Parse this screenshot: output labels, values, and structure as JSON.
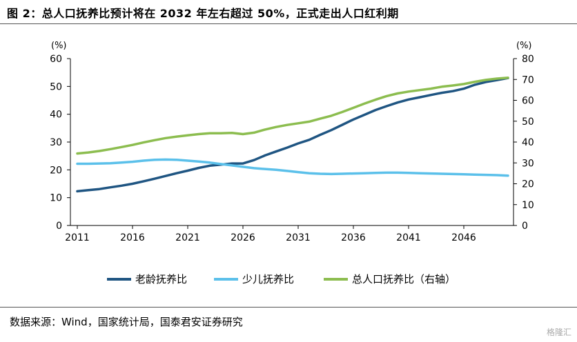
{
  "header": {
    "title": "图 2：总人口抚养比预计将在 2032 年左右超过 50%，正式走出人口红利期"
  },
  "footer": {
    "source": "数据来源：Wind，国家统计局，国泰君安证券研究",
    "watermark": "格隆汇"
  },
  "chart_data": {
    "type": "line",
    "x": [
      2011,
      2012,
      2013,
      2014,
      2015,
      2016,
      2017,
      2018,
      2019,
      2020,
      2021,
      2022,
      2023,
      2024,
      2025,
      2026,
      2027,
      2028,
      2029,
      2030,
      2031,
      2032,
      2033,
      2034,
      2035,
      2036,
      2037,
      2038,
      2039,
      2040,
      2041,
      2042,
      2043,
      2044,
      2045,
      2046,
      2047,
      2048,
      2049,
      2050
    ],
    "x_ticks": [
      "2011",
      "2016",
      "2021",
      "2026",
      "2031",
      "2036",
      "2041",
      "2046"
    ],
    "x_range": [
      2011,
      2050
    ],
    "y_left": {
      "unit": "(%)",
      "range": [
        0,
        60
      ],
      "ticks": [
        "0",
        "10",
        "20",
        "30",
        "40",
        "50",
        "60"
      ]
    },
    "y_right": {
      "unit": "(%)",
      "range": [
        0,
        80
      ],
      "ticks": [
        "0",
        "10",
        "20",
        "30",
        "40",
        "50",
        "60",
        "70",
        "80"
      ]
    },
    "legend_position": "bottom",
    "series": [
      {
        "name": "老龄抚养比",
        "axis": "left",
        "color": "#1f5582",
        "values": [
          12.3,
          12.7,
          13.1,
          13.7,
          14.3,
          15.0,
          15.9,
          16.8,
          17.8,
          18.8,
          19.7,
          20.7,
          21.5,
          21.9,
          22.3,
          22.3,
          23.5,
          25.2,
          26.6,
          28.0,
          29.5,
          30.8,
          32.6,
          34.3,
          36.2,
          38.1,
          39.8,
          41.5,
          42.9,
          44.2,
          45.3,
          46.1,
          46.9,
          47.7,
          48.3,
          49.2,
          50.6,
          51.6,
          52.3,
          53.0
        ]
      },
      {
        "name": "少儿抚养比",
        "axis": "left",
        "color": "#5bc0ea",
        "values": [
          22.2,
          22.2,
          22.3,
          22.4,
          22.6,
          22.9,
          23.3,
          23.6,
          23.7,
          23.6,
          23.3,
          23.0,
          22.6,
          22.1,
          21.6,
          21.1,
          20.6,
          20.3,
          20.0,
          19.6,
          19.2,
          18.8,
          18.6,
          18.5,
          18.6,
          18.7,
          18.8,
          18.9,
          19.0,
          19.0,
          18.9,
          18.8,
          18.7,
          18.6,
          18.5,
          18.4,
          18.3,
          18.2,
          18.1,
          17.9
        ]
      },
      {
        "name": "总人口抚养比（右轴）",
        "axis": "right",
        "color": "#8cbd4f",
        "values": [
          34.5,
          35.0,
          35.7,
          36.6,
          37.6,
          38.6,
          39.8,
          40.9,
          41.9,
          42.6,
          43.2,
          43.8,
          44.2,
          44.2,
          44.4,
          43.8,
          44.5,
          46.0,
          47.2,
          48.2,
          49.0,
          49.8,
          51.2,
          52.6,
          54.4,
          56.4,
          58.4,
          60.3,
          62.0,
          63.3,
          64.2,
          64.9,
          65.6,
          66.5,
          67.1,
          67.8,
          68.9,
          69.8,
          70.4,
          70.8
        ]
      }
    ]
  }
}
